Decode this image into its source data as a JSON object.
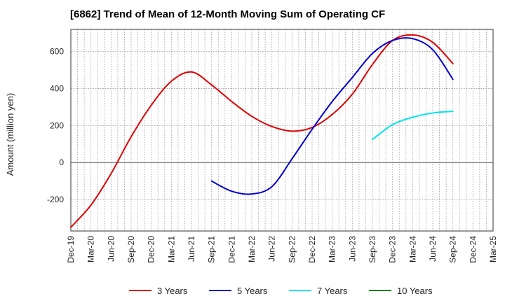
{
  "chart_data": {
    "type": "line",
    "title": "[6862]  Trend of Mean of 12-Month Moving Sum of Operating CF",
    "xlabel": "",
    "ylabel": "Amount (million yen)",
    "ylim": [
      -370,
      720
    ],
    "yticks": [
      -200,
      0,
      200,
      400,
      600
    ],
    "x_tick_labels": [
      "Dec-19",
      "Mar-20",
      "Jun-20",
      "Sep-20",
      "Dec-20",
      "Mar-21",
      "Jun-21",
      "Sep-21",
      "Dec-21",
      "Mar-22",
      "Jun-22",
      "Sep-22",
      "Dec-22",
      "Mar-23",
      "Jun-23",
      "Sep-23",
      "Dec-23",
      "Mar-24",
      "Jun-24",
      "Sep-24",
      "Dec-24",
      "Mar-25"
    ],
    "x_tick_positions": [
      0,
      3,
      6,
      9,
      12,
      15,
      18,
      21,
      24,
      27,
      30,
      33,
      36,
      39,
      42,
      45,
      48,
      51,
      54,
      57,
      60,
      63
    ],
    "x_range": [
      0,
      63
    ],
    "grid": true,
    "legend_position": "bottom",
    "series": [
      {
        "name": "3 Years",
        "color": "#e00000",
        "x": [
          0,
          3,
          6,
          9,
          12,
          15,
          18,
          21,
          24,
          27,
          30,
          33,
          36,
          39,
          42,
          45,
          48,
          51,
          54,
          57
        ],
        "y": [
          -350,
          -230,
          -60,
          140,
          310,
          440,
          490,
          420,
          330,
          250,
          195,
          170,
          190,
          260,
          370,
          530,
          660,
          690,
          650,
          535
        ]
      },
      {
        "name": "5 Years",
        "color": "#0000cc",
        "x": [
          21,
          24,
          27,
          30,
          33,
          36,
          39,
          42,
          45,
          48,
          51,
          54,
          57
        ],
        "y": [
          -100,
          -155,
          -170,
          -130,
          20,
          180,
          330,
          460,
          590,
          660,
          670,
          610,
          450
        ]
      },
      {
        "name": "7 Years",
        "color": "#00e5ee",
        "x": [
          45,
          48,
          51,
          54,
          57
        ],
        "y": [
          125,
          205,
          245,
          268,
          277
        ]
      },
      {
        "name": "10 Years",
        "color": "#008000",
        "x": [],
        "y": []
      }
    ]
  }
}
